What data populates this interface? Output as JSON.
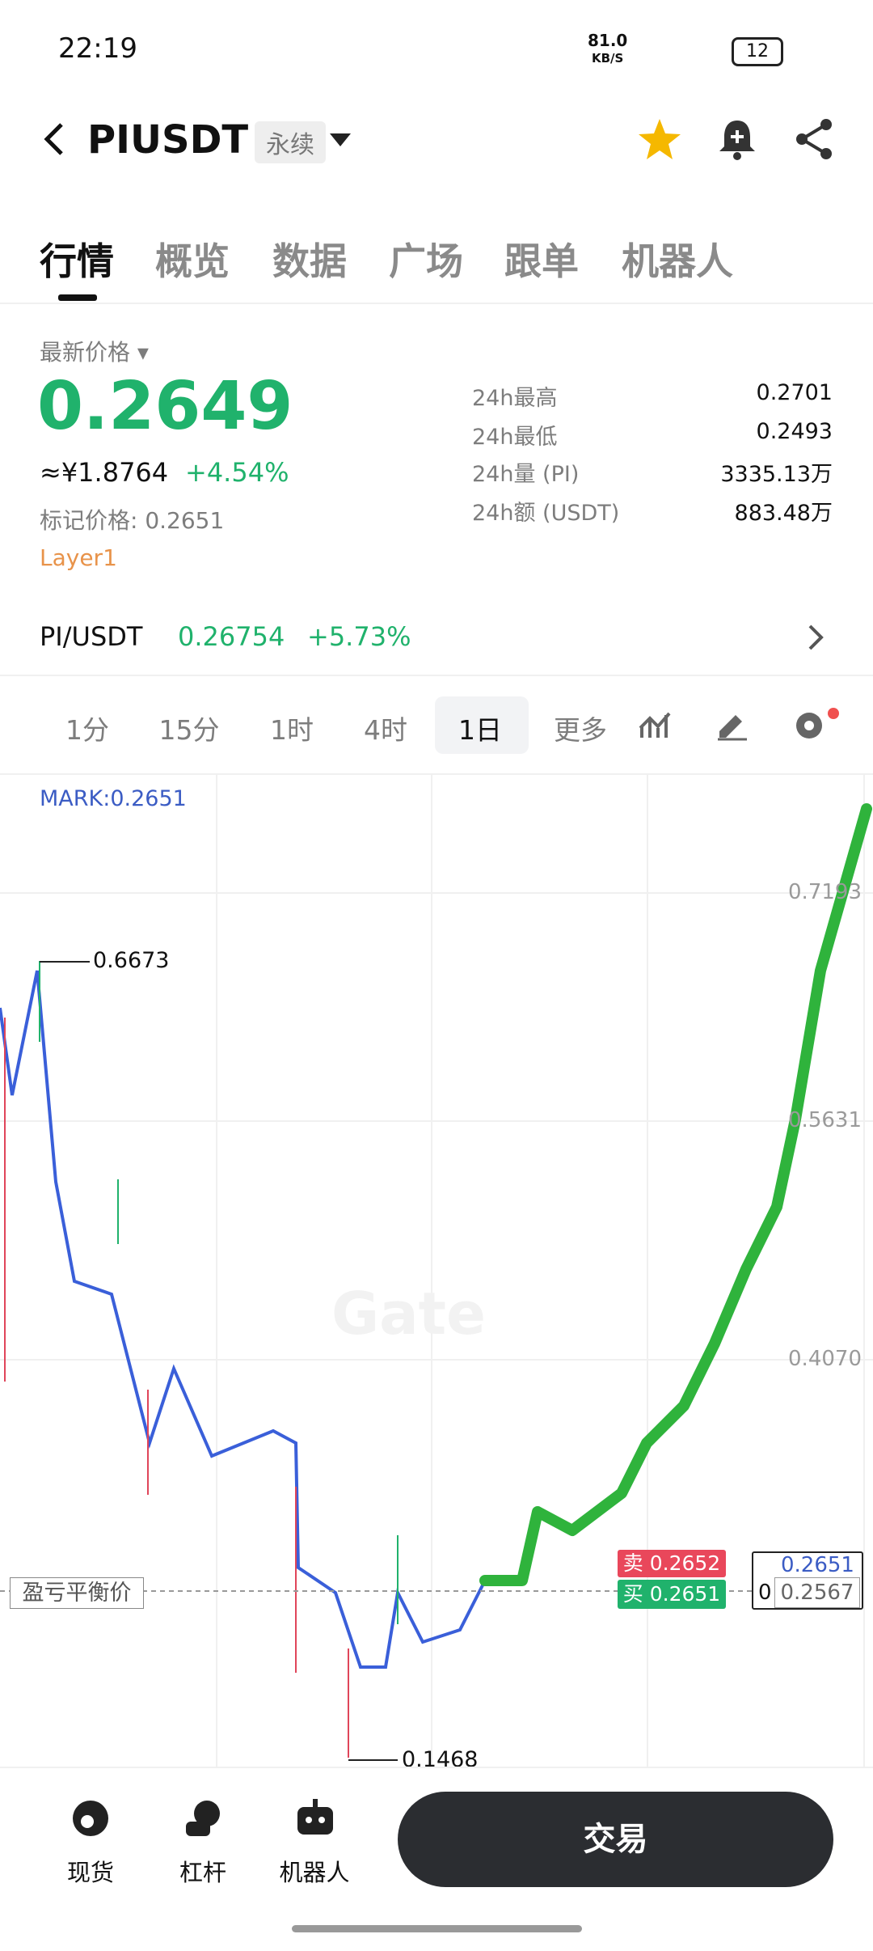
{
  "status_bar": {
    "time": "22:19",
    "speed": "81.0",
    "speed_unit": "KB/S",
    "battery": "12"
  },
  "header": {
    "symbol": "PIUSDT",
    "tag": "永续"
  },
  "tabs": [
    "行情",
    "概览",
    "数据",
    "广场",
    "跟单",
    "机器人"
  ],
  "price": {
    "label": "最新价格",
    "last": "0.2649",
    "cny": "≈¥1.8764",
    "change": "+4.54%",
    "mark": "标记价格: 0.2651",
    "sector": "Layer1"
  },
  "stats": [
    {
      "label": "24h最高",
      "value": "0.2701"
    },
    {
      "label": "24h最低",
      "value": "0.2493"
    },
    {
      "label": "24h量 (PI)",
      "value": "3335.13万"
    },
    {
      "label": "24h额 (USDT)",
      "value": "883.48万"
    }
  ],
  "spot": {
    "pair": "PI/USDT",
    "price": "0.26754",
    "change": "+5.73%"
  },
  "timeframes": [
    "1分",
    "15分",
    "1时",
    "4时",
    "1日",
    "更多"
  ],
  "chart": {
    "mark_label": "MARK:0.2651",
    "y_labels": [
      "0.7193",
      "0.5631",
      "0.4070"
    ],
    "high": "0.6673",
    "low": "0.1468",
    "watermark": "Gate",
    "breakeven": "盈亏平衡价",
    "sell_label": "卖",
    "sell": "0.2652",
    "buy_label": "买",
    "buy": "0.2651",
    "right_price": "0.2651",
    "right_price2": "0.2567",
    "right_zero": "0"
  },
  "bottom_nav": {
    "items": [
      "现货",
      "杠杆",
      "机器人"
    ],
    "trade": "交易"
  }
}
